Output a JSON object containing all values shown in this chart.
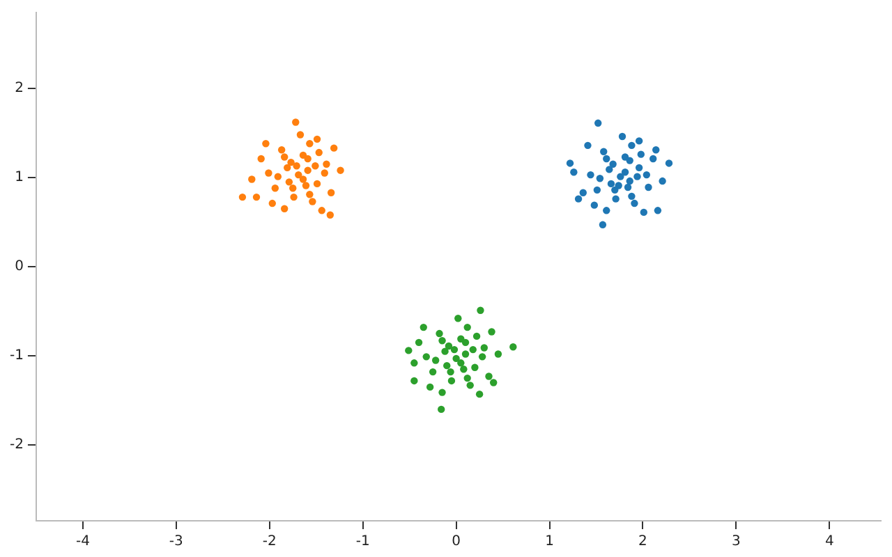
{
  "chart_data": {
    "type": "scatter",
    "marker": "circle",
    "grid": false,
    "legend": false,
    "xlim": [
      -4.5,
      4.55
    ],
    "ylim": [
      -2.85,
      2.85
    ],
    "xticks": [
      -4,
      -3,
      -2,
      -1,
      0,
      1,
      2,
      3,
      4
    ],
    "yticks": [
      -2,
      -1,
      0,
      1,
      2
    ],
    "series": [
      {
        "color": "#1f77b4",
        "x": [
          1.76,
          1.86,
          1.64,
          1.96,
          1.51,
          1.81,
          1.71,
          2.06,
          1.44,
          1.91,
          1.58,
          1.84,
          1.68,
          1.98,
          1.48,
          2.11,
          1.36,
          1.88,
          1.61,
          2.21,
          1.26,
          1.78,
          2.01,
          1.41,
          1.94,
          1.66,
          1.81,
          1.74,
          2.04,
          1.54,
          1.86,
          1.61,
          1.88,
          1.7,
          2.14,
          1.31,
          1.96,
          1.52,
          1.22,
          2.28,
          1.57,
          2.16
        ],
        "values": [
          1.01,
          0.96,
          1.09,
          1.11,
          0.86,
          1.23,
          0.76,
          0.89,
          1.03,
          0.71,
          1.29,
          0.89,
          1.15,
          1.26,
          0.69,
          1.21,
          0.83,
          1.36,
          0.63,
          0.96,
          1.06,
          1.46,
          0.61,
          1.36,
          1.01,
          0.93,
          1.06,
          0.91,
          1.03,
          0.99,
          1.19,
          1.21,
          0.79,
          0.86,
          1.31,
          0.76,
          1.41,
          1.61,
          1.16,
          1.16,
          0.47,
          0.63
        ]
      },
      {
        "color": "#ff7f0e",
        "x": [
          -1.69,
          -1.59,
          -1.81,
          -1.49,
          -1.94,
          -1.64,
          -1.74,
          -1.39,
          -2.01,
          -1.54,
          -1.87,
          -1.61,
          -1.77,
          -1.47,
          -1.97,
          -1.34,
          -2.09,
          -1.57,
          -1.84,
          -1.24,
          -2.19,
          -1.67,
          -1.44,
          -2.04,
          -1.51,
          -1.79,
          -1.64,
          -1.71,
          -1.41,
          -1.91,
          -1.59,
          -1.84,
          -1.57,
          -1.75,
          -1.31,
          -2.14,
          -1.49,
          -2.29,
          -1.35,
          -1.72
        ],
        "values": [
          1.03,
          1.08,
          1.11,
          0.93,
          0.88,
          1.25,
          0.78,
          1.15,
          1.05,
          0.73,
          1.31,
          0.91,
          1.17,
          1.28,
          0.71,
          0.83,
          1.21,
          1.38,
          0.65,
          1.08,
          0.98,
          1.48,
          0.63,
          1.38,
          1.13,
          0.95,
          0.98,
          1.13,
          1.05,
          1.01,
          1.21,
          1.23,
          0.81,
          0.88,
          1.33,
          0.78,
          1.43,
          0.78,
          0.58,
          1.62
        ]
      },
      {
        "color": "#2ca02c",
        "x": [
          0,
          0.1,
          -0.12,
          0.2,
          -0.25,
          0.05,
          -0.05,
          0.3,
          -0.32,
          0.15,
          -0.18,
          0.08,
          -0.08,
          0.22,
          -0.28,
          0.35,
          -0.4,
          0.12,
          -0.15,
          0.45,
          -0.45,
          0.02,
          0.25,
          -0.35,
          0.18,
          -0.1,
          0.05,
          -0.02,
          0.28,
          -0.22,
          0.1,
          -0.15,
          0.12,
          -0.06,
          0.38,
          -0.45,
          0.26,
          -0.16,
          -0.51,
          0.61,
          0.4
        ],
        "values": [
          -1.03,
          -0.98,
          -0.95,
          -1.13,
          -1.18,
          -0.81,
          -1.28,
          -0.91,
          -1.01,
          -1.33,
          -0.75,
          -1.15,
          -0.89,
          -0.78,
          -1.35,
          -1.23,
          -0.85,
          -0.68,
          -1.41,
          -0.98,
          -1.08,
          -0.58,
          -1.43,
          -0.68,
          -0.93,
          -1.11,
          -1.08,
          -0.93,
          -1.01,
          -1.05,
          -0.85,
          -0.83,
          -1.25,
          -1.18,
          -0.73,
          -1.28,
          -0.49,
          -1.6,
          -0.94,
          -0.9,
          -1.3
        ]
      }
    ]
  }
}
